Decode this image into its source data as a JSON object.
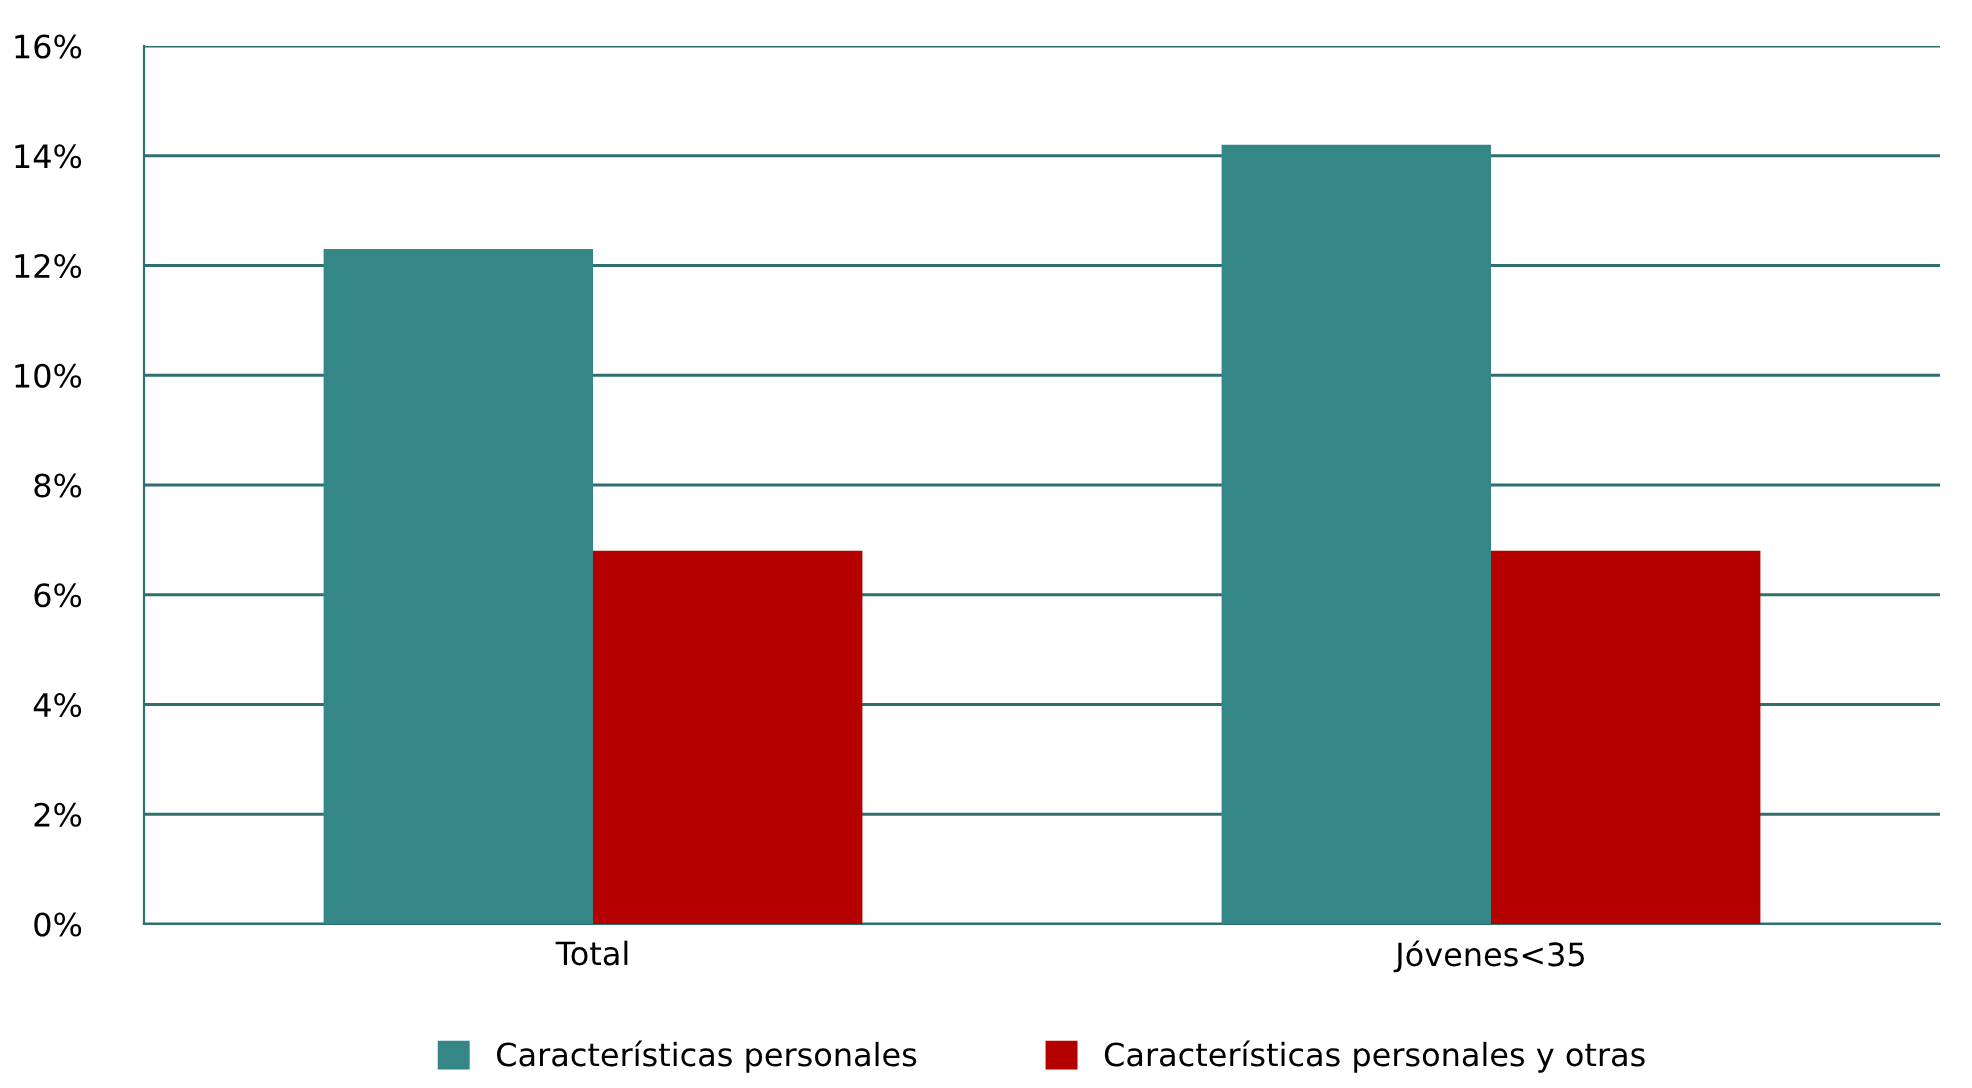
{
  "chart_data": {
    "type": "bar",
    "categories": [
      "Total",
      "Jóvenes<35"
    ],
    "series": [
      {
        "name": "Características personales",
        "color": "#358787",
        "values": [
          12.3,
          14.2
        ]
      },
      {
        "name": "Características personales y otras",
        "color": "#b50000",
        "values": [
          6.8,
          6.8
        ]
      }
    ],
    "ylim": [
      0,
      16
    ],
    "yticks": [
      {
        "value": 0,
        "label": "0%"
      },
      {
        "value": 2,
        "label": "2%"
      },
      {
        "value": 4,
        "label": "4%"
      },
      {
        "value": 6,
        "label": "6%"
      },
      {
        "value": 8,
        "label": "8%"
      },
      {
        "value": 10,
        "label": "10%"
      },
      {
        "value": 12,
        "label": "12%"
      },
      {
        "value": 14,
        "label": "14%"
      },
      {
        "value": 16,
        "label": "16%"
      }
    ],
    "grid": "y",
    "legend": "bottom"
  }
}
